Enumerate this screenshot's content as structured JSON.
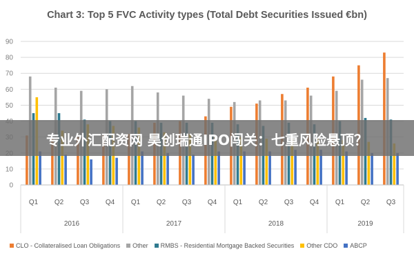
{
  "chart_data": {
    "type": "bar",
    "title": "Chart 3: Top 5 FVC Activity types (Total Debt Securities Issued €bn)",
    "ylim": [
      0,
      90
    ],
    "yticks": [
      0,
      10,
      20,
      30,
      40,
      50,
      60,
      70,
      80,
      90
    ],
    "grid": true,
    "legend_position": "bottom",
    "categories": [
      "Q1",
      "Q2",
      "Q3",
      "Q4",
      "Q1",
      "Q2",
      "Q3",
      "Q4",
      "Q1",
      "Q2",
      "Q3",
      "Q4",
      "Q1",
      "Q2",
      "Q3"
    ],
    "groups": [
      {
        "label": "2016",
        "count": 4
      },
      {
        "label": "2017",
        "count": 4
      },
      {
        "label": "2018",
        "count": 4
      },
      {
        "label": "2019",
        "count": 3
      }
    ],
    "series": [
      {
        "name": "CLO - Collateralised Loan Obligations",
        "color": "#ED7D31",
        "values": [
          31,
          29,
          30,
          31,
          32,
          39,
          40,
          43,
          49,
          51,
          57,
          61,
          68,
          75,
          83
        ]
      },
      {
        "name": "Other",
        "color": "#A5A5A5",
        "values": [
          68,
          61,
          59,
          60,
          62,
          58,
          56,
          54,
          52,
          53,
          53,
          56,
          59,
          66,
          67
        ]
      },
      {
        "name": "RMBS - Residential Mortgage Backed Securities",
        "color": "#2F7A8F",
        "values": [
          45,
          45,
          41,
          40,
          40,
          39,
          39,
          39,
          38,
          37,
          39,
          38,
          40,
          42,
          41
        ]
      },
      {
        "name": "Other CDO",
        "color": "#FFC000",
        "values": [
          55,
          34,
          38,
          37,
          36,
          33,
          32,
          31,
          30,
          29,
          29,
          29,
          28,
          27,
          26
        ]
      },
      {
        "name": "ABCP",
        "color": "#4472C4",
        "values": [
          21,
          19,
          16,
          17,
          21,
          20,
          19,
          21,
          21,
          21,
          22,
          22,
          21,
          20,
          20
        ]
      }
    ]
  },
  "banner": {
    "text": "专业外汇配资网 昊创瑞通IPO闯关：七重风险悬顶？"
  }
}
